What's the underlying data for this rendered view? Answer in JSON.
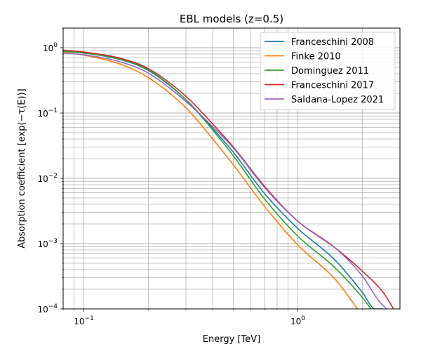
{
  "chart_data": {
    "type": "line",
    "title": "EBL models (z=0.5)",
    "xlabel": "Energy [TeV]",
    "ylabel": "Absorption coefficient [exp(−τ(E))]",
    "xscale": "log",
    "yscale": "log",
    "xlim": [
      0.08,
      3.0
    ],
    "ylim": [
      0.0001,
      2.0
    ],
    "grid": "both major and minor",
    "legend_position": "top-right",
    "x_tick_labels": [
      {
        "value": 0.1,
        "base": "10",
        "exp": "−1"
      },
      {
        "value": 1.0,
        "base": "10",
        "exp": "0"
      }
    ],
    "y_tick_labels": [
      {
        "value": 1,
        "base": "10",
        "exp": "0"
      },
      {
        "value": 0.1,
        "base": "10",
        "exp": "−1"
      },
      {
        "value": 0.01,
        "base": "10",
        "exp": "−2"
      },
      {
        "value": 0.001,
        "base": "10",
        "exp": "−3"
      },
      {
        "value": 0.0001,
        "base": "10",
        "exp": "−4"
      }
    ],
    "series": [
      {
        "name": "Franceschini 2008",
        "color": "#1f77b4",
        "x": [
          0.08,
          0.1,
          0.15,
          0.2,
          0.3,
          0.4,
          0.5,
          0.7,
          1.0,
          1.5,
          2.0,
          2.3,
          2.5
        ],
        "y": [
          0.88,
          0.83,
          0.65,
          0.45,
          0.16,
          0.058,
          0.025,
          0.0058,
          0.0017,
          0.00055,
          0.00018,
          0.0001,
          0.0001
        ]
      },
      {
        "name": "Finke 2010",
        "color": "#ff7f0e",
        "x": [
          0.08,
          0.1,
          0.15,
          0.2,
          0.3,
          0.4,
          0.5,
          0.7,
          1.0,
          1.5,
          1.9
        ],
        "y": [
          0.85,
          0.77,
          0.55,
          0.35,
          0.12,
          0.04,
          0.016,
          0.0037,
          0.00095,
          0.00028,
          0.0001
        ]
      },
      {
        "name": "Dominguez 2011",
        "color": "#2ca02c",
        "x": [
          0.08,
          0.1,
          0.15,
          0.2,
          0.3,
          0.4,
          0.5,
          0.7,
          1.0,
          1.5,
          2.0,
          2.2
        ],
        "y": [
          0.88,
          0.83,
          0.66,
          0.46,
          0.16,
          0.055,
          0.022,
          0.0048,
          0.0013,
          0.00042,
          0.00015,
          0.0001
        ]
      },
      {
        "name": "Franceschini 2017",
        "color": "#d62728",
        "x": [
          0.08,
          0.1,
          0.15,
          0.2,
          0.3,
          0.4,
          0.5,
          0.7,
          1.0,
          1.5,
          2.0,
          2.5,
          2.8
        ],
        "y": [
          0.92,
          0.86,
          0.68,
          0.48,
          0.18,
          0.068,
          0.03,
          0.0075,
          0.0022,
          0.00085,
          0.00038,
          0.00018,
          0.0001
        ]
      },
      {
        "name": "Saldana-Lopez 2021",
        "color": "#9467bd",
        "x": [
          0.08,
          0.1,
          0.15,
          0.2,
          0.3,
          0.4,
          0.5,
          0.7,
          1.0,
          1.5,
          2.0,
          2.4,
          2.6
        ],
        "y": [
          0.83,
          0.78,
          0.6,
          0.41,
          0.15,
          0.062,
          0.029,
          0.0072,
          0.0022,
          0.00085,
          0.00032,
          0.00013,
          0.0001
        ]
      }
    ]
  }
}
